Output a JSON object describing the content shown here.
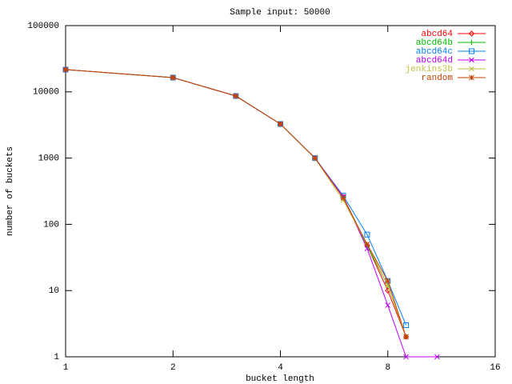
{
  "chart_data": {
    "type": "line",
    "title": "Sample input: 50000",
    "x_label": "bucket length",
    "y_label": "number of buckets",
    "logscale": {
      "x": 2,
      "y": 10
    },
    "xlim": [
      1,
      16
    ],
    "xticks": [
      1,
      2,
      4,
      8,
      16
    ],
    "ylim": [
      1,
      100000
    ],
    "yticks": [
      1,
      10,
      100,
      1000,
      10000,
      100000
    ],
    "legend": "top-right",
    "series": [
      {
        "name": "abcd64",
        "color": "#ff0000",
        "x": [
          1,
          2,
          3,
          4,
          5,
          6,
          7,
          8,
          9
        ],
        "values": [
          21700,
          16400,
          8650,
          3270,
          1000,
          260,
          48,
          10,
          2
        ]
      },
      {
        "name": "abcd64b",
        "color": "#00c000",
        "x": [
          1,
          2,
          3,
          4,
          5,
          6,
          7,
          8,
          9
        ],
        "values": [
          21700,
          16400,
          8650,
          3270,
          1000,
          255,
          47,
          12,
          2
        ]
      },
      {
        "name": "abcd64c",
        "color": "#0080ff",
        "x": [
          1,
          2,
          3,
          4,
          5,
          6,
          7,
          8,
          9
        ],
        "values": [
          21700,
          16400,
          8650,
          3270,
          1000,
          270,
          70,
          14,
          3
        ]
      },
      {
        "name": "abcd64d",
        "color": "#c000ff",
        "x": [
          1,
          2,
          3,
          4,
          5,
          6,
          7,
          8,
          9,
          11
        ],
        "values": [
          21700,
          16400,
          8650,
          3270,
          1000,
          260,
          43,
          6,
          1,
          1
        ]
      },
      {
        "name": "jenkins3b",
        "color": "#c0c040",
        "x": [
          1,
          2,
          3,
          4,
          5,
          6,
          7,
          8,
          9
        ],
        "values": [
          21700,
          16400,
          8650,
          3270,
          990,
          230,
          50,
          12,
          2
        ]
      },
      {
        "name": "random",
        "color": "#c04000",
        "x": [
          1,
          2,
          3,
          4,
          5,
          6,
          7,
          8,
          9
        ],
        "values": [
          21700,
          16400,
          8650,
          3270,
          1000,
          250,
          50,
          14,
          2
        ]
      }
    ]
  }
}
